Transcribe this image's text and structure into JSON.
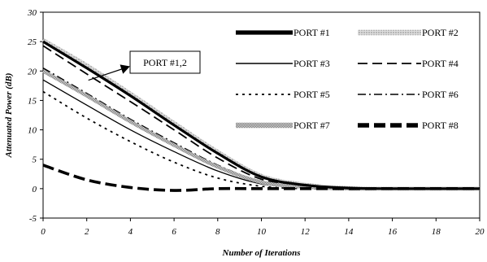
{
  "chart_data": {
    "type": "line",
    "title": "",
    "xlabel": "Number of Iterations",
    "ylabel": "Attenuated Power (dB)",
    "xlim": [
      0,
      20
    ],
    "ylim": [
      -5,
      30
    ],
    "xticks": [
      0,
      2,
      4,
      6,
      8,
      10,
      12,
      14,
      16,
      18,
      20
    ],
    "yticks": [
      -5,
      0,
      5,
      10,
      15,
      20,
      25,
      30
    ],
    "grid": false,
    "legend_position": "top-right",
    "x": [
      0,
      2,
      4,
      6,
      8,
      10,
      12,
      14,
      16,
      18,
      20
    ],
    "series": [
      {
        "name": "PORT #1",
        "style": "thick-solid",
        "color": "#000000",
        "values": [
          25.0,
          20.5,
          15.8,
          10.8,
          6.0,
          2.0,
          0.6,
          0.1,
          0.0,
          0.0,
          0.0
        ]
      },
      {
        "name": "PORT #2",
        "style": "thick-dotted-gray",
        "color": "#b0b0b0",
        "values": [
          25.3,
          21.0,
          16.2,
          11.2,
          6.3,
          2.2,
          0.7,
          0.1,
          0.0,
          0.0,
          0.0
        ]
      },
      {
        "name": "PORT #3",
        "style": "solid",
        "color": "#000000",
        "values": [
          18.5,
          14.2,
          10.0,
          6.3,
          3.0,
          0.8,
          0.2,
          0.0,
          0.0,
          0.0,
          0.0
        ]
      },
      {
        "name": "PORT #4",
        "style": "long-dash",
        "color": "#000000",
        "values": [
          24.3,
          19.5,
          14.8,
          10.0,
          5.2,
          1.6,
          0.4,
          0.0,
          0.0,
          0.0,
          0.0
        ]
      },
      {
        "name": "PORT #5",
        "style": "dotted",
        "color": "#000000",
        "values": [
          16.5,
          12.0,
          8.0,
          4.5,
          1.8,
          0.4,
          0.0,
          0.0,
          0.0,
          0.0,
          0.0
        ]
      },
      {
        "name": "PORT #6",
        "style": "dash-dot",
        "color": "#000000",
        "values": [
          20.5,
          16.2,
          11.8,
          7.8,
          4.0,
          1.2,
          0.3,
          0.0,
          0.0,
          0.0,
          0.0
        ]
      },
      {
        "name": "PORT #7",
        "style": "thick-hatched-gray",
        "color": "#a8a8a8",
        "values": [
          20.0,
          15.8,
          11.4,
          7.4,
          3.7,
          1.1,
          0.3,
          0.0,
          0.0,
          0.0,
          0.0
        ]
      },
      {
        "name": "PORT #8",
        "style": "thick-dash",
        "color": "#000000",
        "values": [
          4.0,
          1.5,
          0.2,
          -0.3,
          0.0,
          0.0,
          0.0,
          0.0,
          0.0,
          0.0,
          0.0
        ]
      }
    ],
    "annotations": [
      {
        "text": "PORT #1,2",
        "target_x": 2,
        "target_y": 19
      }
    ]
  }
}
